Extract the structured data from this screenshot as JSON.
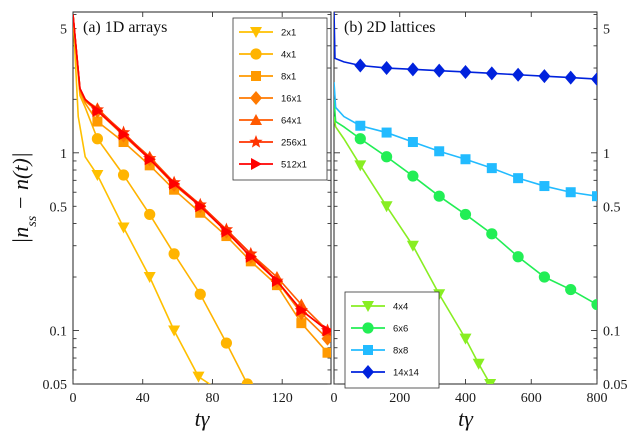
{
  "chart_data": {
    "type": "line",
    "ylabel": "|n_ss − n(t)|",
    "ylabel_parts": {
      "base": "|",
      "n": "n",
      "sub": "ss",
      "rest": " − n(t)|"
    },
    "y_scale": "log",
    "ylim": [
      0.05,
      6.2
    ],
    "yticks": [
      0.05,
      0.1,
      0.5,
      1,
      5
    ],
    "ytick_labels": [
      "0.05",
      "0.1",
      "0.5",
      "1",
      "5"
    ],
    "panels": [
      {
        "title": "(a) 1D arrays",
        "xlabel": "tγ",
        "xlim": [
          0,
          148
        ],
        "xticks": [
          0,
          40,
          80,
          120
        ],
        "xtick_labels": [
          "0",
          "40",
          "80",
          "120"
        ],
        "legend_position": "top-right",
        "series": [
          {
            "name": "2x1",
            "color": "#FFC000",
            "marker": "triangle-down",
            "x": [
              0,
              3,
              7,
              14,
              29,
              44,
              58,
              72,
              81
            ],
            "y": [
              6.0,
              1.6,
              0.95,
              0.75,
              0.38,
              0.2,
              0.1,
              0.055,
              0.048
            ]
          },
          {
            "name": "4x1",
            "color": "#FFB400",
            "marker": "circle",
            "x": [
              0,
              4,
              7,
              14,
              29,
              44,
              58,
              73,
              88,
              100
            ],
            "y": [
              6.0,
              2.1,
              1.8,
              1.2,
              0.75,
              0.45,
              0.27,
              0.16,
              0.085,
              0.05
            ]
          },
          {
            "name": "8x1",
            "color": "#FF9900",
            "marker": "square",
            "x": [
              0,
              4,
              7,
              14,
              29,
              44,
              58,
              73,
              88,
              102,
              117,
              131,
              146
            ],
            "y": [
              6.0,
              2.2,
              1.9,
              1.5,
              1.15,
              0.85,
              0.62,
              0.46,
              0.34,
              0.245,
              0.18,
              0.11,
              0.075
            ]
          },
          {
            "name": "16x1",
            "color": "#FF7A00",
            "marker": "diamond",
            "x": [
              0,
              4,
              7,
              14,
              29,
              44,
              58,
              73,
              88,
              102,
              117,
              131,
              146
            ],
            "y": [
              6.0,
              2.25,
              1.95,
              1.72,
              1.25,
              0.92,
              0.66,
              0.5,
              0.36,
              0.26,
              0.19,
              0.125,
              0.09
            ]
          },
          {
            "name": "64x1",
            "color": "#FF5A00",
            "marker": "triangle-up",
            "x": [
              0,
              4,
              7,
              14,
              29,
              44,
              58,
              73,
              88,
              102,
              117,
              131,
              146
            ],
            "y": [
              6.0,
              2.28,
              1.98,
              1.78,
              1.28,
              0.95,
              0.68,
              0.51,
              0.37,
              0.27,
              0.2,
              0.14,
              0.1
            ]
          },
          {
            "name": "256x1",
            "color": "#FF3300",
            "marker": "star",
            "x": [
              0,
              4,
              7,
              14,
              29,
              44,
              58,
              73,
              88,
              102,
              117,
              131,
              146
            ],
            "y": [
              6.0,
              2.3,
              2.0,
              1.75,
              1.3,
              0.93,
              0.68,
              0.51,
              0.37,
              0.27,
              0.19,
              0.13,
              0.1
            ]
          },
          {
            "name": "512x1",
            "color": "#FF0000",
            "marker": "triangle-right",
            "x": [
              0,
              4,
              7,
              14,
              29,
              44,
              58,
              73,
              88,
              102,
              117,
              131,
              146
            ],
            "y": [
              6.0,
              2.3,
              2.0,
              1.72,
              1.27,
              0.92,
              0.67,
              0.5,
              0.36,
              0.26,
              0.19,
              0.13,
              0.1
            ]
          }
        ]
      },
      {
        "title": "(b) 2D lattices",
        "xlabel": "tγ",
        "xlim": [
          0,
          800
        ],
        "xticks": [
          0,
          200,
          400,
          600,
          800
        ],
        "xtick_labels": [
          "0",
          "200",
          "400",
          "600",
          "800"
        ],
        "legend_position": "bottom-left",
        "series": [
          {
            "name": "4x4",
            "color": "#88EE22",
            "marker": "triangle-down",
            "x": [
              0,
              5,
              30,
              80,
              160,
              240,
              320,
              400,
              440,
              475
            ],
            "y": [
              1.6,
              1.4,
              1.2,
              0.85,
              0.5,
              0.3,
              0.16,
              0.09,
              0.065,
              0.05
            ]
          },
          {
            "name": "6x6",
            "color": "#22EE55",
            "marker": "circle",
            "x": [
              0,
              5,
              30,
              80,
              160,
              240,
              320,
              400,
              480,
              560,
              640,
              720,
              800
            ],
            "y": [
              2.0,
              1.5,
              1.4,
              1.2,
              0.95,
              0.74,
              0.57,
              0.45,
              0.35,
              0.26,
              0.2,
              0.17,
              0.14
            ]
          },
          {
            "name": "8x8",
            "color": "#22BBFF",
            "marker": "square",
            "x": [
              0,
              5,
              30,
              80,
              160,
              240,
              320,
              400,
              480,
              560,
              640,
              720,
              800
            ],
            "y": [
              2.5,
              1.8,
              1.6,
              1.42,
              1.3,
              1.15,
              1.02,
              0.92,
              0.82,
              0.72,
              0.65,
              0.6,
              0.57
            ]
          },
          {
            "name": "14x14",
            "color": "#0022DD",
            "marker": "diamond",
            "x": [
              0,
              3,
              30,
              80,
              160,
              240,
              320,
              400,
              480,
              560,
              640,
              720,
              800
            ],
            "y": [
              6.2,
              3.4,
              3.25,
              3.1,
              3.0,
              2.95,
              2.9,
              2.85,
              2.8,
              2.75,
              2.7,
              2.65,
              2.6
            ]
          }
        ]
      }
    ]
  }
}
